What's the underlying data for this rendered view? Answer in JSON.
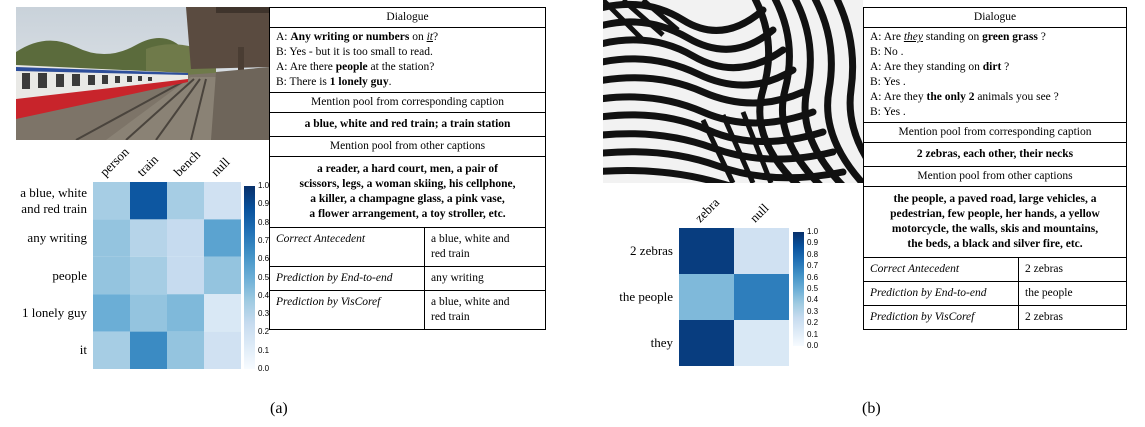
{
  "panel_a": {
    "label": "(a)",
    "table": {
      "dialogue_header": "Dialogue",
      "dialogue": [
        {
          "spk": "A:",
          "parts": [
            {
              "t": " "
            },
            {
              "t": "Any writing",
              "b": true
            },
            {
              "t": " "
            },
            {
              "t": "or numbers",
              "b": true
            },
            {
              "t": " on "
            },
            {
              "t": "it",
              "u": true
            },
            {
              "t": "?"
            }
          ]
        },
        {
          "spk": "B:",
          "parts": [
            {
              "t": " Yes - but it is too small to read."
            }
          ]
        },
        {
          "spk": "A:",
          "parts": [
            {
              "t": " Are there "
            },
            {
              "t": "people",
              "b": true
            },
            {
              "t": " at the station?"
            }
          ]
        },
        {
          "spk": "B:",
          "parts": [
            {
              "t": " There is "
            },
            {
              "t": "1 lonely guy",
              "b": true
            },
            {
              "t": "."
            }
          ]
        }
      ],
      "pool_corresponding_header": "Mention pool from corresponding caption",
      "pool_corresponding": "a blue, white and red train; a train station",
      "pool_other_header": "Mention pool from other captions",
      "pool_other_lines": [
        "a reader, a hard court, men, a pair of",
        "scissors, legs, a woman skiing, his cellphone,",
        "a killer, a champagne glass, a pink vase,",
        "a flower arrangement, a toy stroller, etc."
      ],
      "rows": [
        {
          "label": "Correct Antecedent",
          "value_lines": [
            "a blue, white and",
            "red train"
          ]
        },
        {
          "label": "Prediction by End-to-end",
          "value_lines": [
            "any writing"
          ]
        },
        {
          "label": "Prediction by VisCoref",
          "value_lines": [
            "a blue, white and",
            "red train"
          ]
        }
      ]
    },
    "heatmap": {
      "columns": [
        "person",
        "train",
        "bench",
        "null"
      ],
      "rows": [
        "a blue, white and red train",
        "any writing",
        "people",
        "1 lonely guy",
        "it"
      ],
      "row_label_lines": [
        [
          "a blue, white",
          "and red train"
        ],
        [
          "any writing"
        ],
        [
          "people"
        ],
        [
          "1 lonely guy"
        ],
        [
          "it"
        ]
      ],
      "values": [
        [
          0.35,
          0.85,
          0.35,
          0.2
        ],
        [
          0.4,
          0.3,
          0.25,
          0.55
        ],
        [
          0.4,
          0.35,
          0.25,
          0.4
        ],
        [
          0.5,
          0.4,
          0.45,
          0.15
        ],
        [
          0.35,
          0.65,
          0.4,
          0.2
        ]
      ],
      "colorbar_ticks": [
        "1.0",
        "0.9",
        "0.8",
        "0.7",
        "0.6",
        "0.5",
        "0.4",
        "0.3",
        "0.2",
        "0.1",
        "0.0"
      ]
    }
  },
  "panel_b": {
    "label": "(b)",
    "table": {
      "dialogue_header": "Dialogue",
      "dialogue": [
        {
          "spk": "A:",
          "parts": [
            {
              "t": " Are "
            },
            {
              "t": "they",
              "u": true
            },
            {
              "t": " standing on "
            },
            {
              "t": "green grass",
              "b": true
            },
            {
              "t": " ?"
            }
          ]
        },
        {
          "spk": "B:",
          "parts": [
            {
              "t": " No ."
            }
          ]
        },
        {
          "spk": "A:",
          "parts": [
            {
              "t": " Are they standing on "
            },
            {
              "t": "dirt",
              "b": true
            },
            {
              "t": " ?"
            }
          ]
        },
        {
          "spk": "B:",
          "parts": [
            {
              "t": " Yes ."
            }
          ]
        },
        {
          "spk": "A:",
          "parts": [
            {
              "t": " Are they "
            },
            {
              "t": "the only 2",
              "b": true
            },
            {
              "t": " animals you see ?"
            }
          ]
        },
        {
          "spk": "B:",
          "parts": [
            {
              "t": " Yes ."
            }
          ]
        }
      ],
      "pool_corresponding_header": "Mention pool from corresponding caption",
      "pool_corresponding": "2 zebras, each other, their necks",
      "pool_other_header": "Mention pool from other captions",
      "pool_other_lines": [
        "the people, a paved road, large vehicles, a",
        "pedestrian, few people, her hands, a yellow",
        "motorcycle, the walls, skis and mountains,",
        "the beds, a black and silver fire, etc."
      ],
      "rows": [
        {
          "label": "Correct Antecedent",
          "value_lines": [
            "2 zebras"
          ]
        },
        {
          "label": "Prediction by End-to-end",
          "value_lines": [
            "the people"
          ]
        },
        {
          "label": "Prediction by VisCoref",
          "value_lines": [
            "2 zebras"
          ]
        }
      ]
    },
    "heatmap": {
      "columns": [
        "zebra",
        "null"
      ],
      "rows": [
        "2 zebras",
        "the people",
        "they"
      ],
      "row_label_lines": [
        [
          "2 zebras"
        ],
        [
          "the people"
        ],
        [
          "they"
        ]
      ],
      "values": [
        [
          0.95,
          0.2
        ],
        [
          0.45,
          0.7
        ],
        [
          0.95,
          0.15
        ]
      ],
      "colorbar_ticks": [
        "1.0",
        "0.9",
        "0.8",
        "0.7",
        "0.6",
        "0.5",
        "0.4",
        "0.3",
        "0.2",
        "0.1",
        "0.0"
      ]
    }
  }
}
